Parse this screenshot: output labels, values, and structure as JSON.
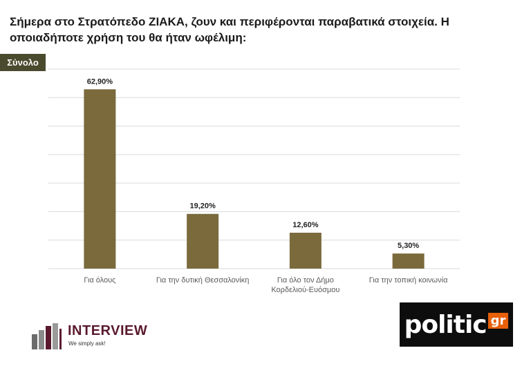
{
  "title": "Σήμερα στο Στρατόπεδο ΖΙΑΚΑ, ζουν και περιφέρονται παραβατικά στοιχεία. Η οποιαδήποτε χρήση του θα ήταν ωφέλιμη:",
  "badge": "Σύνολο",
  "colors": {
    "bar": "#7a6a3c",
    "grid": "#d9d9d9",
    "badge_bg": "#4a4a2e",
    "politic_accent": "#e8600a"
  },
  "chart_data": {
    "type": "bar",
    "title": "",
    "categories": [
      [
        "Για όλους"
      ],
      [
        "Για την δυτική Θεσσαλονίκη"
      ],
      [
        "Για όλο τον Δήμο",
        "Κορδελιού-Ευόσμου"
      ],
      [
        "Για την τοπική κοινωνία"
      ]
    ],
    "values": [
      62.9,
      19.2,
      12.6,
      5.3
    ],
    "value_labels": [
      "62,90%",
      "19,20%",
      "12,60%",
      "5,30%"
    ],
    "ylim": [
      0,
      70
    ],
    "grid": true,
    "legend": "none"
  },
  "logos": {
    "interview_name": "INTERVIEW",
    "interview_tagline": "We simply ask!",
    "politic_word": "politic",
    "politic_suffix": "gr"
  }
}
